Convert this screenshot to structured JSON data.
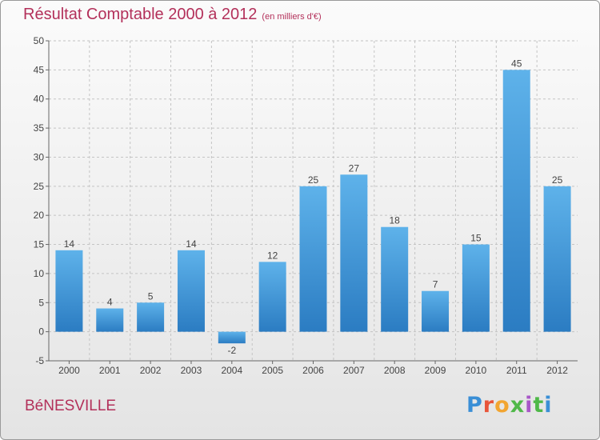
{
  "header": {
    "title": "Résultat Comptable 2000 à 2012",
    "subtitle": "(en milliers d'€)"
  },
  "footer": {
    "commune": "BéNESVILLE"
  },
  "logo": {
    "text": "Proxiti",
    "letter_colors": [
      "#3a8fd6",
      "#e8553a",
      "#f2a531",
      "#4fb848",
      "#a857c8",
      "#4fb848"
    ]
  },
  "colors": {
    "bar_top": "#5eb2ea",
    "bar_bottom": "#2b7cc2",
    "text_accent": "#b3305a"
  },
  "chart_data": {
    "type": "bar",
    "categories": [
      "2000",
      "2001",
      "2002",
      "2003",
      "2004",
      "2005",
      "2006",
      "2007",
      "2008",
      "2009",
      "2010",
      "2011",
      "2012"
    ],
    "values": [
      14,
      4,
      5,
      14,
      -2,
      12,
      25,
      27,
      18,
      7,
      15,
      45,
      25
    ],
    "ylim": [
      -5,
      50
    ],
    "yticks": [
      -5,
      0,
      5,
      10,
      15,
      20,
      25,
      30,
      35,
      40,
      45,
      50
    ],
    "grid": true,
    "data_labels": true,
    "legend": "none"
  }
}
